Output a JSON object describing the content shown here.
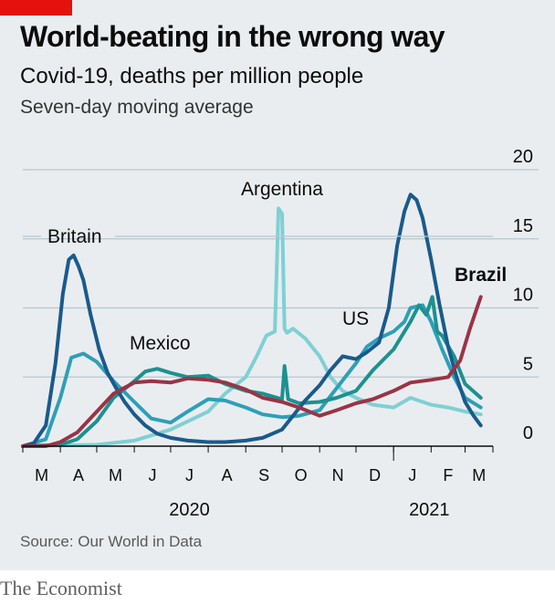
{
  "header": {
    "title": "World-beating in the wrong way",
    "subtitle": "Covid-19, deaths per million people",
    "note": "Seven-day moving average"
  },
  "footer": {
    "source": "Source: Our World in Data",
    "brand": "The Economist"
  },
  "colors": {
    "background": "#e9edf0",
    "brand_red": "#e3120b",
    "Brazil": "#9b3345",
    "Britain": "#1a5a8c",
    "US": "#2e9fb8",
    "Mexico": "#1d918f",
    "Argentina": "#7fd0d4"
  },
  "chart_data": {
    "type": "line",
    "title": "World-beating in the wrong way",
    "subtitle": "Covid-19, deaths per million people",
    "note": "Seven-day moving average",
    "ylim": [
      0,
      20
    ],
    "yticks": [
      0,
      5,
      10,
      15,
      20
    ],
    "y_axis_side": "right",
    "grid": true,
    "x_tick_labels": [
      "M",
      "A",
      "M",
      "J",
      "J",
      "A",
      "S",
      "O",
      "N",
      "D",
      "J",
      "F",
      "M"
    ],
    "year_labels": [
      "2020",
      "2021"
    ],
    "series": [
      {
        "name": "Britain",
        "label_weight": "normal",
        "x": [
          "2020-03-01",
          "2020-03-10",
          "2020-03-20",
          "2020-03-28",
          "2020-04-03",
          "2020-04-08",
          "2020-04-12",
          "2020-04-16",
          "2020-04-20",
          "2020-04-26",
          "2020-05-03",
          "2020-05-10",
          "2020-05-17",
          "2020-05-24",
          "2020-06-01",
          "2020-06-10",
          "2020-06-20",
          "2020-07-01",
          "2020-07-15",
          "2020-08-01",
          "2020-08-15",
          "2020-09-01",
          "2020-09-15",
          "2020-10-01",
          "2020-10-10",
          "2020-10-20",
          "2020-11-01",
          "2020-11-10",
          "2020-11-20",
          "2020-12-01",
          "2020-12-10",
          "2020-12-20",
          "2020-12-28",
          "2021-01-04",
          "2021-01-10",
          "2021-01-15",
          "2021-01-20",
          "2021-01-25",
          "2021-02-01",
          "2021-02-08",
          "2021-02-15",
          "2021-02-22",
          "2021-03-01",
          "2021-03-08",
          "2021-03-14"
        ],
        "values": [
          0,
          0.2,
          1.5,
          6,
          11,
          13.5,
          13.8,
          13,
          12,
          9.5,
          7,
          5.3,
          4.2,
          3.2,
          2.3,
          1.5,
          0.9,
          0.6,
          0.4,
          0.3,
          0.3,
          0.4,
          0.6,
          1.2,
          2.2,
          3.3,
          4.4,
          5.5,
          6.5,
          6.3,
          6.8,
          7.5,
          10,
          14.5,
          17,
          18.2,
          17.8,
          16.5,
          13.5,
          10.2,
          7.2,
          5,
          3.2,
          2.2,
          1.5
        ]
      },
      {
        "name": "US",
        "label_weight": "normal",
        "x": [
          "2020-03-01",
          "2020-03-20",
          "2020-04-01",
          "2020-04-10",
          "2020-04-20",
          "2020-05-01",
          "2020-05-15",
          "2020-06-01",
          "2020-06-15",
          "2020-07-01",
          "2020-07-15",
          "2020-08-01",
          "2020-08-15",
          "2020-09-01",
          "2020-09-15",
          "2020-10-01",
          "2020-10-15",
          "2020-11-01",
          "2020-11-15",
          "2020-12-01",
          "2020-12-10",
          "2020-12-20",
          "2021-01-01",
          "2021-01-10",
          "2021-01-15",
          "2021-01-25",
          "2021-02-01",
          "2021-02-10",
          "2021-02-20",
          "2021-03-01",
          "2021-03-14"
        ],
        "values": [
          0,
          0.5,
          3.5,
          6.4,
          6.7,
          6.1,
          4.7,
          3.2,
          2.0,
          1.7,
          2.5,
          3.4,
          3.3,
          2.8,
          2.3,
          2.1,
          2.2,
          2.6,
          4.2,
          6.0,
          7.2,
          7.8,
          8.3,
          9.0,
          10.0,
          10.2,
          9.0,
          7.0,
          5.0,
          3.5,
          2.8
        ]
      },
      {
        "name": "Mexico",
        "label_weight": "normal",
        "x": [
          "2020-03-01",
          "2020-04-01",
          "2020-04-15",
          "2020-05-01",
          "2020-05-15",
          "2020-06-01",
          "2020-06-10",
          "2020-06-20",
          "2020-07-01",
          "2020-07-15",
          "2020-08-01",
          "2020-08-15",
          "2020-09-01",
          "2020-09-15",
          "2020-10-01",
          "2020-10-03",
          "2020-10-06",
          "2020-10-15",
          "2020-11-01",
          "2020-11-15",
          "2020-12-01",
          "2020-12-15",
          "2021-01-01",
          "2021-01-15",
          "2021-01-22",
          "2021-01-28",
          "2021-02-02",
          "2021-02-06",
          "2021-02-10",
          "2021-02-20",
          "2021-03-01",
          "2021-03-14"
        ],
        "values": [
          0,
          0.1,
          0.5,
          1.8,
          3.5,
          4.7,
          5.4,
          5.6,
          5.3,
          5.0,
          5.1,
          4.5,
          4.0,
          3.8,
          3.4,
          5.8,
          3.4,
          3.1,
          3.2,
          3.5,
          4.0,
          5.5,
          7.0,
          9.0,
          10.2,
          9.5,
          10.8,
          8.3,
          8.0,
          6.5,
          4.5,
          3.5
        ]
      },
      {
        "name": "Argentina",
        "label_weight": "normal",
        "x": [
          "2020-03-01",
          "2020-04-01",
          "2020-05-01",
          "2020-06-01",
          "2020-07-01",
          "2020-08-01",
          "2020-08-15",
          "2020-09-01",
          "2020-09-10",
          "2020-09-18",
          "2020-09-25",
          "2020-09-28",
          "2020-10-01",
          "2020-10-03",
          "2020-10-05",
          "2020-10-10",
          "2020-10-20",
          "2020-11-01",
          "2020-11-10",
          "2020-11-20",
          "2020-12-01",
          "2020-12-15",
          "2021-01-01",
          "2021-01-15",
          "2021-02-01",
          "2021-02-15",
          "2021-03-01",
          "2021-03-14"
        ],
        "values": [
          0,
          0.05,
          0.1,
          0.4,
          1.2,
          2.5,
          3.8,
          5.0,
          6.5,
          8.0,
          8.3,
          17.2,
          16.8,
          8.5,
          8.2,
          8.5,
          7.8,
          6.5,
          5.0,
          4.0,
          3.5,
          3.0,
          2.8,
          3.5,
          3.0,
          2.8,
          2.5,
          2.3
        ]
      },
      {
        "name": "Brazil",
        "label_weight": "bold",
        "x": [
          "2020-03-01",
          "2020-03-20",
          "2020-04-01",
          "2020-04-15",
          "2020-05-01",
          "2020-05-15",
          "2020-06-01",
          "2020-06-15",
          "2020-07-01",
          "2020-07-15",
          "2020-08-01",
          "2020-08-15",
          "2020-09-01",
          "2020-09-15",
          "2020-10-01",
          "2020-10-15",
          "2020-11-01",
          "2020-11-15",
          "2020-12-01",
          "2020-12-15",
          "2021-01-01",
          "2021-01-15",
          "2021-02-01",
          "2021-02-15",
          "2021-02-25",
          "2021-03-05",
          "2021-03-14"
        ],
        "values": [
          0,
          0,
          0.3,
          1.0,
          2.5,
          3.8,
          4.6,
          4.7,
          4.6,
          4.9,
          4.8,
          4.6,
          4.1,
          3.5,
          3.2,
          2.8,
          2.2,
          2.6,
          3.1,
          3.4,
          4.0,
          4.6,
          4.8,
          5.0,
          6.2,
          8.5,
          10.8
        ]
      }
    ]
  }
}
